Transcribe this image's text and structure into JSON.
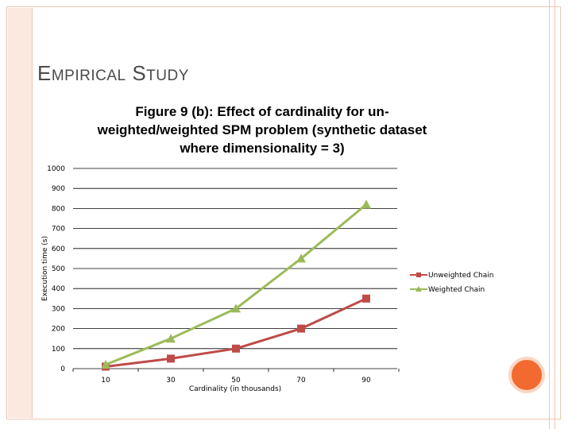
{
  "slide": {
    "title_first": "E",
    "title_rest1": "MPIRICAL",
    "title_s": "S",
    "title_rest2": "TUDY"
  },
  "colors": {
    "unweighted": "#be4b48",
    "weighted": "#9bbb59",
    "grid": "#000000",
    "accent": "#f26a2f"
  },
  "chart_data": {
    "type": "line",
    "title": "Figure 9 (b): Effect of cardinality for un-weighted/weighted SPM problem (synthetic dataset where dimensionality = 3)",
    "xlabel": "Cardinality (in thousands)",
    "ylabel": "Execution time (s)",
    "categories": [
      "10",
      "30",
      "50",
      "70",
      "90"
    ],
    "y_ticks": [
      0,
      100,
      200,
      300,
      400,
      500,
      600,
      700,
      800,
      900,
      1000
    ],
    "ylim": [
      0,
      1000
    ],
    "grid": true,
    "legend_position": "right",
    "series": [
      {
        "name": "Unweighted Chain",
        "marker": "square",
        "values": [
          10,
          50,
          100,
          200,
          350
        ]
      },
      {
        "name": "Weighted Chain",
        "marker": "triangle",
        "values": [
          20,
          150,
          300,
          550,
          820
        ]
      }
    ]
  }
}
